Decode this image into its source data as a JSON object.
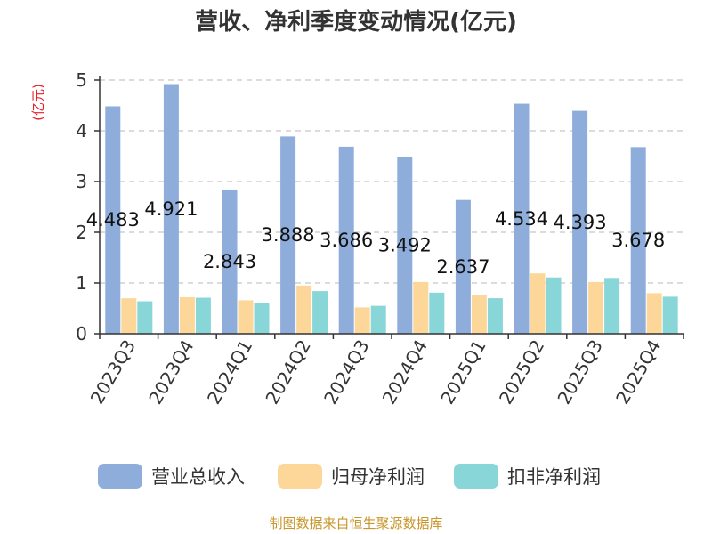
{
  "chart_data": {
    "type": "bar",
    "title": "营收、净利季度变动情况(亿元)",
    "unit_label": "(亿元)",
    "categories": [
      "2023Q3",
      "2023Q4",
      "2024Q1",
      "2024Q2",
      "2024Q3",
      "2024Q4",
      "2025Q1",
      "2025Q2",
      "2025Q3",
      "2025Q4"
    ],
    "series": [
      {
        "name": "营业总收入",
        "color": "#8eaddb",
        "values": [
          4.483,
          4.921,
          2.843,
          3.888,
          3.686,
          3.492,
          2.637,
          4.534,
          4.393,
          3.678
        ]
      },
      {
        "name": "归母净利润",
        "color": "#fdd79a",
        "values": [
          0.7,
          0.72,
          0.66,
          0.95,
          0.52,
          1.02,
          0.77,
          1.19,
          1.02,
          0.8
        ]
      },
      {
        "name": "扣非净利润",
        "color": "#88d6d8",
        "values": [
          0.64,
          0.71,
          0.6,
          0.84,
          0.55,
          0.81,
          0.7,
          1.11,
          1.1,
          0.73
        ]
      }
    ],
    "data_labels": [
      "4.483",
      "4.921",
      "2.843",
      "3.888",
      "3.686",
      "3.492",
      "2.637",
      "4.534",
      "4.393",
      "3.678"
    ],
    "ylim": [
      0,
      5
    ],
    "yticks": [
      "0",
      "1",
      "2",
      "3",
      "4",
      "5"
    ],
    "grid": true,
    "legend_position": "bottom"
  },
  "source_text": "制图数据来自恒生聚源数据库"
}
